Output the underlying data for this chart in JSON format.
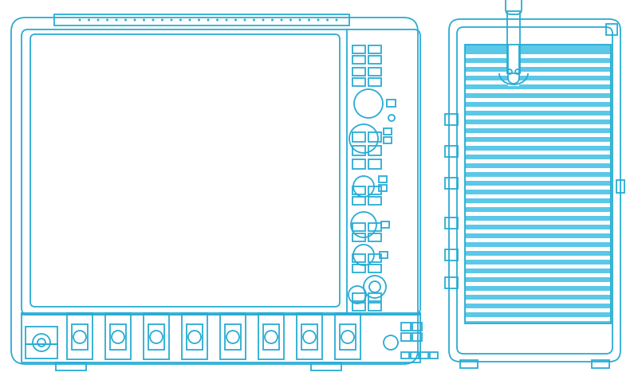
{
  "bg_color": "#ffffff",
  "line_color": "#29acd4",
  "fill_color": "#5bc8e8",
  "lw": 1.3
}
